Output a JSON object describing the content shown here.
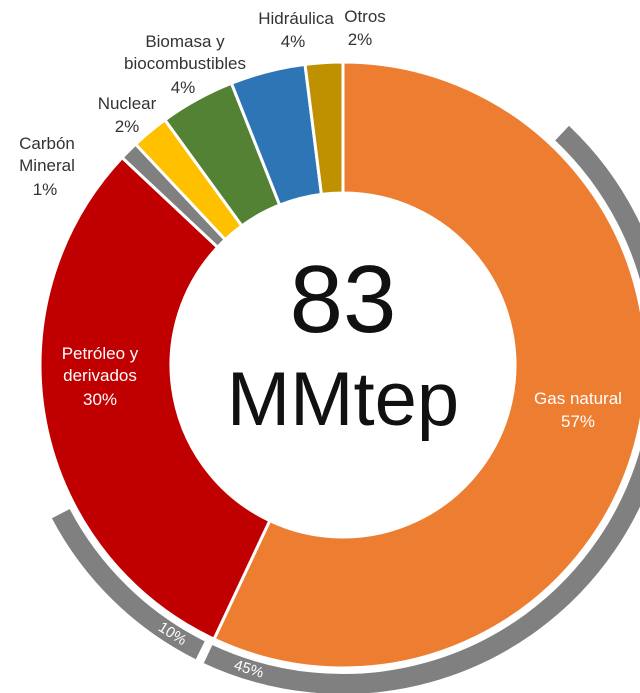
{
  "chart_data": {
    "type": "donut",
    "categories": [
      "Gas natural",
      "Petróleo y derivados",
      "Carbón Mineral",
      "Nuclear",
      "Biomasa y biocombustibles",
      "Hidráulica",
      "Otros"
    ],
    "values": [
      57,
      30,
      1,
      2,
      4,
      4,
      2
    ],
    "value_labels": [
      "57%",
      "30%",
      "1%",
      "2%",
      "4%",
      "4%",
      "2%"
    ],
    "colors": [
      "#ed7d31",
      "#c00000",
      "#808080",
      "#ffc000",
      "#548235",
      "#2e75b6",
      "#bf9000"
    ],
    "center_value": 83,
    "center_unit": "MMtep",
    "sub_arcs": [
      {
        "slice": 0,
        "value": 45,
        "label": "45%"
      },
      {
        "slice": 1,
        "value": 10,
        "label": "10%"
      }
    ]
  }
}
